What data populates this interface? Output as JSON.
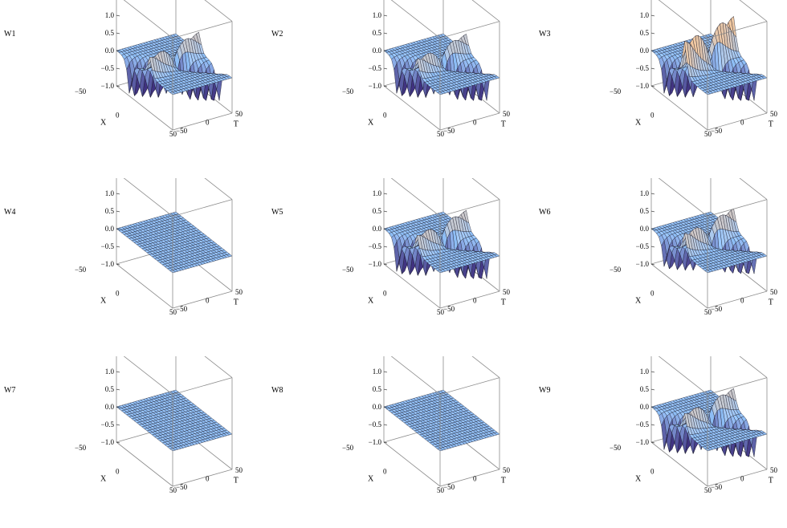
{
  "colors": {
    "surface": "#9cc9ff",
    "surface_alt": "#8dbdf5",
    "mesh": "#1b1b2a",
    "ridge_dark": "#3b2a7a",
    "ridge_light": "#f7c89a",
    "box": "#8c8c8c"
  },
  "chart_data": [
    {
      "type": "surface3d",
      "zlabel": "W1",
      "xlabel": "X",
      "ylabel": "T",
      "xlim": [
        -50,
        50
      ],
      "ylim": [
        -50,
        50
      ],
      "zlim": [
        -1,
        1
      ],
      "z_ticks": [
        "1.0",
        "0.5",
        "0.0",
        "−0.5",
        "−1.0"
      ],
      "x_ticks": [
        "−50",
        "0",
        "50"
      ],
      "y_ticks": [
        "50",
        "0",
        "−50"
      ],
      "solitons": [
        {
          "slope": 0.52,
          "sign": -1,
          "amp": 1
        },
        {
          "slope": -0.18,
          "sign": 1,
          "amp": 0.55
        }
      ]
    },
    {
      "type": "surface3d",
      "zlabel": "W2",
      "xlabel": "X",
      "ylabel": "T",
      "xlim": [
        -50,
        50
      ],
      "ylim": [
        -50,
        50
      ],
      "zlim": [
        -1,
        1
      ],
      "z_ticks": [
        "1.0",
        "0.5",
        "0.0",
        "−0.5",
        "−1.0"
      ],
      "x_ticks": [
        "−50",
        "0",
        "50"
      ],
      "y_ticks": [
        "50",
        "0",
        "−50"
      ],
      "solitons": [
        {
          "slope": 0.52,
          "sign": -1,
          "amp": 1
        },
        {
          "slope": -0.18,
          "sign": 1,
          "amp": 0.5
        }
      ]
    },
    {
      "type": "surface3d",
      "zlabel": "W3",
      "xlabel": "X",
      "ylabel": "T",
      "xlim": [
        -50,
        50
      ],
      "ylim": [
        -50,
        50
      ],
      "zlim": [
        -1,
        1
      ],
      "z_ticks": [
        "1.0",
        "0.5",
        "0.0",
        "−0.5",
        "−1.0"
      ],
      "x_ticks": [
        "−50",
        "0",
        "50"
      ],
      "y_ticks": [
        "50",
        "0",
        "−50"
      ],
      "solitons": [
        {
          "slope": 0.52,
          "sign": -1,
          "amp": 1
        },
        {
          "slope": -0.18,
          "sign": 1,
          "amp": 1
        }
      ]
    },
    {
      "type": "surface3d",
      "zlabel": "W4",
      "xlabel": "X",
      "ylabel": "T",
      "xlim": [
        -50,
        50
      ],
      "ylim": [
        -50,
        50
      ],
      "zlim": [
        -1,
        1
      ],
      "z_ticks": [
        "1.0",
        "0.5",
        "0.0",
        "−0.5",
        "−1.0"
      ],
      "x_ticks": [
        "−50",
        "0",
        "50"
      ],
      "y_ticks": [
        "50",
        "0",
        "−50"
      ],
      "solitons": []
    },
    {
      "type": "surface3d",
      "zlabel": "W5",
      "xlabel": "X",
      "ylabel": "T",
      "xlim": [
        -50,
        50
      ],
      "ylim": [
        -50,
        50
      ],
      "zlim": [
        -1,
        1
      ],
      "z_ticks": [
        "1.0",
        "0.5",
        "0.0",
        "−0.5",
        "−1.0"
      ],
      "x_ticks": [
        "−50",
        "0",
        "50"
      ],
      "y_ticks": [
        "50",
        "0",
        "−50"
      ],
      "solitons": [
        {
          "slope": 0.52,
          "sign": -1,
          "amp": 1
        },
        {
          "slope": -0.18,
          "sign": 1,
          "amp": 0.55
        }
      ]
    },
    {
      "type": "surface3d",
      "zlabel": "W6",
      "xlabel": "X",
      "ylabel": "T",
      "xlim": [
        -50,
        50
      ],
      "ylim": [
        -50,
        50
      ],
      "zlim": [
        -1,
        1
      ],
      "z_ticks": [
        "1.0",
        "0.5",
        "0.0",
        "−0.5",
        "−1.0"
      ],
      "x_ticks": [
        "−50",
        "0",
        "50"
      ],
      "y_ticks": [
        "50",
        "0",
        "−50"
      ],
      "solitons": [
        {
          "slope": 0.52,
          "sign": -1,
          "amp": 0.85
        },
        {
          "slope": -0.18,
          "sign": 1,
          "amp": 0.6
        }
      ]
    },
    {
      "type": "surface3d",
      "zlabel": "W7",
      "xlabel": "X",
      "ylabel": "T",
      "xlim": [
        -50,
        50
      ],
      "ylim": [
        -50,
        50
      ],
      "zlim": [
        -1,
        1
      ],
      "z_ticks": [
        "1.0",
        "0.5",
        "0.0",
        "−0.5",
        "−1.0"
      ],
      "x_ticks": [
        "−50",
        "0",
        "50"
      ],
      "y_ticks": [
        "50",
        "0",
        "−50"
      ],
      "solitons": []
    },
    {
      "type": "surface3d",
      "zlabel": "W8",
      "xlabel": "X",
      "ylabel": "T",
      "xlim": [
        -50,
        50
      ],
      "ylim": [
        -50,
        50
      ],
      "zlim": [
        -1,
        1
      ],
      "z_ticks": [
        "1.0",
        "0.5",
        "0.0",
        "−0.5",
        "−1.0"
      ],
      "x_ticks": [
        "−50",
        "0",
        "50"
      ],
      "y_ticks": [
        "50",
        "0",
        "−50"
      ],
      "solitons": []
    },
    {
      "type": "surface3d",
      "zlabel": "W9",
      "xlabel": "X",
      "ylabel": "T",
      "xlim": [
        -50,
        50
      ],
      "ylim": [
        -50,
        50
      ],
      "zlim": [
        -1,
        1
      ],
      "z_ticks": [
        "1.0",
        "0.5",
        "0.0",
        "−0.5",
        "−1.0"
      ],
      "x_ticks": [
        "−50",
        "0",
        "50"
      ],
      "y_ticks": [
        "50",
        "0",
        "−50"
      ],
      "solitons": [
        {
          "slope": 0.52,
          "sign": -1,
          "amp": 1
        },
        {
          "slope": -0.18,
          "sign": 1,
          "amp": 0.55
        }
      ]
    }
  ]
}
